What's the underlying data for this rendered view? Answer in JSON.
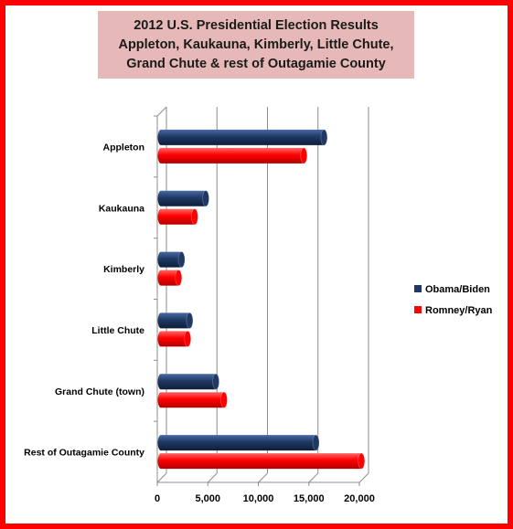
{
  "chart_data": {
    "type": "bar",
    "orientation": "horizontal",
    "style": "3d-cylinder",
    "title_lines": [
      "2012 U.S. Presidential Election Results",
      "Appleton, Kaukauna, Kimberly, Little Chute,",
      "Grand Chute & rest of Outagamie County"
    ],
    "categories": [
      "Appleton",
      "Kaukauna",
      "Kimberly",
      "Little Chute",
      "Grand Chute (town)",
      "Rest of Outagamie County"
    ],
    "series": [
      {
        "name": "Obama/Biden",
        "color": "#1f3864",
        "values": [
          16500,
          4800,
          2400,
          3200,
          5800,
          15700
        ]
      },
      {
        "name": "Romney/Ryan",
        "color": "#ff0000",
        "values": [
          14500,
          3700,
          2100,
          3000,
          6600,
          20200
        ]
      }
    ],
    "xlim": [
      0,
      20000
    ],
    "x_ticks": [
      "0",
      "5,000",
      "10,000",
      "15,000",
      "20,000"
    ],
    "grid": true,
    "legend_position": "right"
  },
  "colors": {
    "frame": "#ff0000",
    "title_background": "#e6b9b8"
  }
}
